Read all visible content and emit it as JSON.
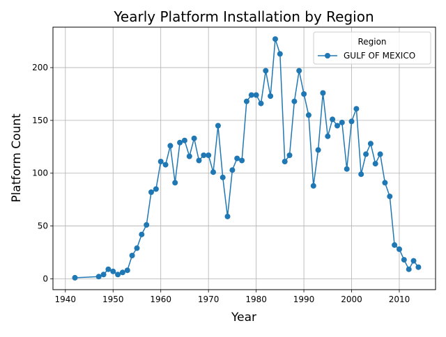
{
  "chart_data": {
    "type": "line",
    "title": "Yearly Platform Installation by Region",
    "xlabel": "Year",
    "ylabel": "Platform Count",
    "xlim": [
      1937.4,
      2017.6
    ],
    "ylim": [
      -10.3,
      238.3
    ],
    "xticks": [
      1940,
      1950,
      1960,
      1970,
      1980,
      1990,
      2000,
      2010
    ],
    "yticks": [
      0,
      50,
      100,
      150,
      200
    ],
    "grid": true,
    "legend": {
      "title": "Region",
      "placement": "top-right"
    },
    "series": [
      {
        "name": "GULF OF MEXICO",
        "color": "#1f77b4",
        "x": [
          1942,
          1947,
          1948,
          1949,
          1950,
          1951,
          1952,
          1953,
          1954,
          1955,
          1956,
          1957,
          1958,
          1959,
          1960,
          1961,
          1962,
          1963,
          1964,
          1965,
          1966,
          1967,
          1968,
          1969,
          1970,
          1971,
          1972,
          1973,
          1974,
          1975,
          1976,
          1977,
          1978,
          1979,
          1980,
          1981,
          1982,
          1983,
          1984,
          1985,
          1986,
          1987,
          1988,
          1989,
          1990,
          1991,
          1992,
          1993,
          1994,
          1995,
          1996,
          1997,
          1998,
          1999,
          2000,
          2001,
          2002,
          2003,
          2004,
          2005,
          2006,
          2007,
          2008,
          2009,
          2010,
          2011,
          2012,
          2013,
          2014
        ],
        "y": [
          1,
          2,
          4,
          9,
          7,
          4,
          6,
          8,
          22,
          29,
          42,
          51,
          82,
          85,
          111,
          108,
          126,
          91,
          129,
          131,
          116,
          133,
          112,
          117,
          117,
          101,
          145,
          96,
          59,
          103,
          114,
          112,
          168,
          174,
          174,
          166,
          197,
          173,
          227,
          213,
          111,
          117,
          168,
          197,
          175,
          155,
          88,
          122,
          176,
          135,
          151,
          145,
          148,
          104,
          149,
          161,
          99,
          118,
          128,
          109,
          118,
          91,
          78,
          32,
          28,
          18,
          9,
          17,
          11
        ]
      }
    ]
  }
}
